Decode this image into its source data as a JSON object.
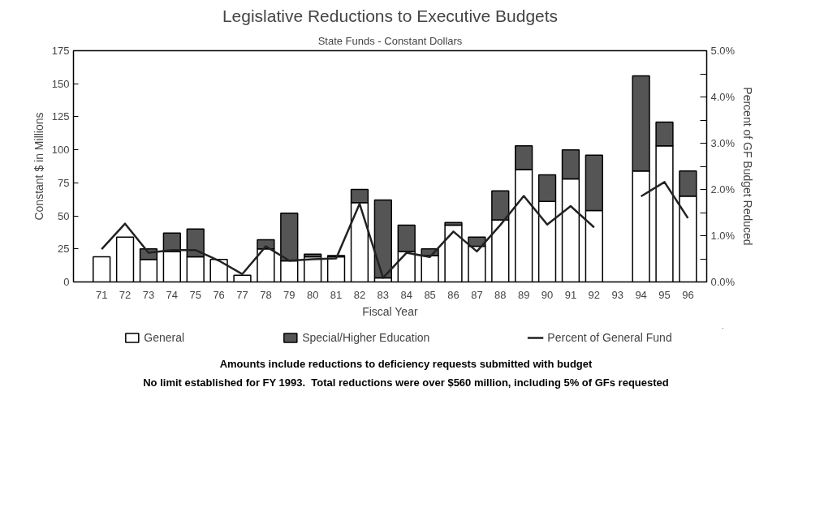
{
  "chart_data": {
    "type": "bar",
    "title": "Legislative Reductions to Executive Budgets",
    "subtitle": "State Funds - Constant Dollars",
    "xlabel": "Fiscal Year",
    "ylabel": "Constant $ in Millions",
    "y2label": "Percent of GF Budget Reduced",
    "categories": [
      "71",
      "72",
      "73",
      "74",
      "75",
      "76",
      "77",
      "78",
      "79",
      "80",
      "81",
      "82",
      "83",
      "84",
      "85",
      "86",
      "87",
      "88",
      "89",
      "90",
      "91",
      "92",
      "93",
      "94",
      "95",
      "96"
    ],
    "stacked": true,
    "series": [
      {
        "name": "General",
        "color": "#ffffff",
        "values": [
          19,
          34,
          17,
          23,
          19,
          17,
          5,
          25,
          16,
          19,
          19,
          60,
          3,
          23,
          20,
          43,
          27,
          47,
          85,
          61,
          78,
          54,
          null,
          84,
          103,
          65
        ]
      },
      {
        "name": "Special/Higher Education",
        "color": "#555555",
        "values": [
          0,
          0,
          8,
          14,
          21,
          0,
          0,
          7,
          36,
          2,
          1,
          10,
          59,
          20,
          5,
          2,
          7,
          22,
          18,
          20,
          22,
          42,
          null,
          72,
          18,
          19
        ]
      },
      {
        "name": "Percent of General Fund",
        "type": "line",
        "axis": "y2",
        "color": "#222222",
        "values": [
          0.71,
          1.26,
          0.63,
          0.69,
          0.69,
          0.46,
          0.17,
          0.77,
          0.46,
          0.49,
          0.51,
          1.69,
          0.09,
          0.63,
          0.54,
          1.09,
          0.66,
          1.23,
          1.86,
          1.24,
          1.64,
          1.18,
          null,
          1.85,
          2.16,
          1.38
        ]
      }
    ],
    "ylim": [
      0,
      175
    ],
    "yticks": [
      0,
      25,
      50,
      75,
      100,
      125,
      150,
      175
    ],
    "y2lim": [
      0,
      5
    ],
    "y2ticks": [
      {
        "value": 0,
        "label": "0.0%"
      },
      {
        "value": 0.5,
        "label": null
      },
      {
        "value": 1,
        "label": "1.0%"
      },
      {
        "value": 1.5,
        "label": null
      },
      {
        "value": 2,
        "label": "2.0%"
      },
      {
        "value": 2.5,
        "label": null
      },
      {
        "value": 3,
        "label": "3.0%"
      },
      {
        "value": 3.5,
        "label": null
      },
      {
        "value": 4,
        "label": "4.0%"
      },
      {
        "value": 4.5,
        "label": null
      },
      {
        "value": 5,
        "label": "5.0%"
      }
    ],
    "grid": false,
    "legend": "bottom",
    "annotations": [
      "Amounts include reductions to deficiency requests submitted with budget",
      "No limit established for FY 1993.  Total reductions were over $560 million, including 5% of GFs requested"
    ]
  }
}
